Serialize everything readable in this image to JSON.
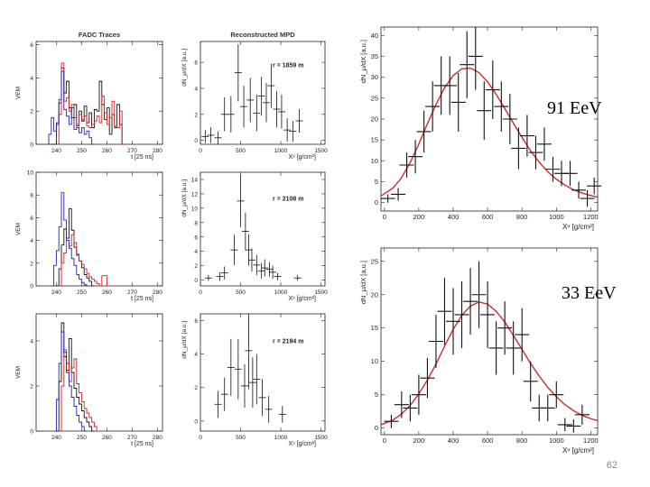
{
  "slide": {
    "energy_label_top": "91 EeV",
    "energy_label_bottom": "33 EeV",
    "page_number": "62"
  },
  "colors": {
    "black": "#111111",
    "red": "#cc2222",
    "blue": "#2222aa",
    "fit": "#d42a2a"
  },
  "chart_data": [
    {
      "id": "fadc-1",
      "type": "line",
      "title": "FADC Traces",
      "xlabel": "t [25 ns]",
      "ylabel": "VEM",
      "xlim": [
        232,
        282
      ],
      "ylim": [
        0,
        6.2
      ],
      "xticks": [
        240,
        250,
        260,
        270,
        280
      ],
      "yticks": [
        0,
        2,
        4,
        6
      ],
      "series": [
        {
          "name": "black",
          "x": [
            238,
            240,
            241,
            242,
            243,
            244,
            245,
            246,
            247,
            248,
            249,
            250,
            251,
            252,
            253,
            254,
            255,
            256,
            257,
            258,
            259,
            260,
            261,
            262,
            263,
            264,
            265,
            266
          ],
          "y": [
            0,
            1.2,
            2.5,
            4.6,
            3.1,
            3.8,
            2.2,
            1.6,
            2.4,
            1.1,
            2.0,
            1.4,
            2.3,
            1.3,
            1.9,
            1.0,
            2.1,
            2.0,
            3.8,
            2.4,
            1.5,
            2.2,
            0.6,
            1.8,
            1.0,
            2.4,
            1.2,
            0
          ]
        },
        {
          "name": "red",
          "x": [
            240,
            241,
            242,
            243,
            244,
            245,
            246,
            247,
            248,
            249,
            250,
            251,
            252,
            253,
            254,
            255,
            256,
            257,
            258,
            259,
            260,
            261,
            262,
            263,
            264,
            265,
            266
          ],
          "y": [
            0,
            1.8,
            4.9,
            2.6,
            2.8,
            2.0,
            2.4,
            1.6,
            1.2,
            1.8,
            1.5,
            1.7,
            1.1,
            1.0,
            1.2,
            1.4,
            1.7,
            1.3,
            2.9,
            1.9,
            1.2,
            1.6,
            2.6,
            1.1,
            1.0,
            2.0,
            0
          ]
        },
        {
          "name": "blue",
          "x": [
            236,
            237,
            238,
            239,
            240,
            241,
            242,
            243,
            244,
            245,
            246,
            247,
            248,
            249,
            250,
            251,
            252,
            253,
            254
          ],
          "y": [
            0,
            0.6,
            1.6,
            0.8,
            1.3,
            2.7,
            4.4,
            2.1,
            1.7,
            1.2,
            2.2,
            0.9,
            1.0,
            0.7,
            1.0,
            0.6,
            0.8,
            0.4,
            0
          ]
        }
      ]
    },
    {
      "id": "fadc-2",
      "type": "line",
      "title": "",
      "xlabel": "t [25 ns]",
      "ylabel": "VEM",
      "xlim": [
        232,
        282
      ],
      "ylim": [
        0,
        10
      ],
      "xticks": [
        240,
        250,
        260,
        270,
        280
      ],
      "yticks": [
        0,
        2,
        4,
        6,
        8,
        10
      ],
      "series": [
        {
          "name": "black",
          "x": [
            240,
            241,
            242,
            243,
            244,
            245,
            246,
            247,
            248,
            249,
            250,
            251,
            252,
            253,
            254
          ],
          "y": [
            0,
            1.5,
            3.6,
            5.0,
            4.2,
            6.8,
            4.9,
            3.4,
            2.7,
            2.2,
            1.6,
            1.0,
            0.7,
            0.4,
            0
          ]
        },
        {
          "name": "red",
          "x": [
            241,
            242,
            243,
            244,
            245,
            246,
            247,
            248,
            249,
            250,
            251,
            252,
            253,
            254,
            255,
            256,
            257,
            258,
            259,
            260,
            261
          ],
          "y": [
            0,
            2.0,
            2.9,
            4.0,
            3.5,
            4.5,
            3.8,
            2.8,
            2.2,
            1.9,
            1.5,
            1.1,
            0.8,
            0.6,
            0.4,
            0.2,
            0,
            0.9,
            0.9,
            0,
            0
          ]
        },
        {
          "name": "blue",
          "x": [
            238,
            239,
            240,
            241,
            242,
            243,
            244,
            245,
            246,
            247,
            248,
            249,
            250,
            251,
            252
          ],
          "y": [
            0,
            1.8,
            3.1,
            5.2,
            8.2,
            5.8,
            4.0,
            3.3,
            2.4,
            1.8,
            1.0,
            0.6,
            0.3,
            0.1,
            0
          ]
        }
      ]
    },
    {
      "id": "fadc-3",
      "type": "line",
      "title": "",
      "xlabel": "t [25 ns]",
      "ylabel": "VEM",
      "xlim": [
        232,
        282
      ],
      "ylim": [
        0,
        5.2
      ],
      "xticks": [
        240,
        250,
        260,
        270,
        280
      ],
      "yticks": [
        0,
        2,
        4
      ],
      "series": [
        {
          "name": "black",
          "x": [
            240,
            241,
            242,
            243,
            244,
            245,
            246,
            247,
            248,
            249,
            250,
            251,
            252,
            253,
            254
          ],
          "y": [
            0,
            2.2,
            4.8,
            3.3,
            2.7,
            4.1,
            2.6,
            1.9,
            1.5,
            1.2,
            0.9,
            0.6,
            0.4,
            0.2,
            0
          ]
        },
        {
          "name": "red",
          "x": [
            241,
            242,
            243,
            244,
            245,
            246,
            247,
            248,
            249,
            250,
            251,
            252,
            253,
            254,
            255,
            256
          ],
          "y": [
            0,
            2.0,
            3.6,
            3.0,
            2.2,
            2.8,
            3.2,
            2.1,
            1.7,
            1.3,
            1.0,
            0.8,
            0.6,
            0.4,
            0.2,
            0
          ]
        },
        {
          "name": "blue",
          "x": [
            239,
            240,
            241,
            242,
            243,
            244,
            245,
            246,
            247,
            248,
            249,
            250,
            251
          ],
          "y": [
            0,
            1.4,
            3.0,
            4.4,
            3.5,
            2.6,
            2.0,
            1.5,
            1.1,
            0.7,
            0.4,
            0.2,
            0
          ]
        }
      ]
    },
    {
      "id": "mpd-1",
      "type": "scatter",
      "title": "Reconstructed MPD",
      "xlabel": "X^μ [g/cm²]",
      "ylabel": "dN_μ/dX [a.u.]",
      "annotation": "r = 1859 m",
      "xlim": [
        0,
        1550
      ],
      "ylim": [
        -0.3,
        7.6
      ],
      "xticks": [
        0,
        500,
        1000,
        1500
      ],
      "yticks": [
        0,
        2,
        4,
        6
      ],
      "x": [
        60,
        130,
        220,
        300,
        380,
        470,
        540,
        620,
        700,
        760,
        820,
        880,
        950,
        1010,
        1080,
        1150,
        1230
      ],
      "y": [
        0.3,
        0.4,
        0.2,
        2.0,
        2.0,
        5.2,
        2.6,
        3.1,
        2.1,
        3.4,
        2.9,
        4.2,
        2.4,
        2.2,
        0.8,
        0.7,
        1.5
      ],
      "err": [
        0.5,
        0.6,
        0.5,
        1.3,
        1.4,
        2.2,
        1.6,
        1.7,
        1.4,
        1.5,
        1.5,
        1.7,
        1.4,
        1.3,
        0.9,
        0.8,
        0.9
      ]
    },
    {
      "id": "mpd-2",
      "type": "scatter",
      "title": "",
      "xlabel": "X^μ [g/cm²]",
      "ylabel": "dN_μ/dX [a.u.]",
      "annotation": "r = 2108 m",
      "xlim": [
        0,
        1550
      ],
      "ylim": [
        -0.8,
        15
      ],
      "xticks": [
        0,
        500,
        1000,
        1500
      ],
      "yticks": [
        0,
        2,
        4,
        6,
        8,
        10,
        12,
        14
      ],
      "x": [
        100,
        240,
        300,
        420,
        500,
        560,
        600,
        640,
        700,
        760,
        800,
        860,
        900,
        960,
        1210
      ],
      "y": [
        0.3,
        0.5,
        1.0,
        4.2,
        11.0,
        6.8,
        4.2,
        2.8,
        2.1,
        1.3,
        1.7,
        1.5,
        1.1,
        0.5,
        0.3
      ],
      "err": [
        0.4,
        0.6,
        0.9,
        2.1,
        3.6,
        2.6,
        2.2,
        1.6,
        1.4,
        1.1,
        1.2,
        1.0,
        0.9,
        0.5,
        0.4
      ]
    },
    {
      "id": "mpd-3",
      "type": "scatter",
      "title": "",
      "xlabel": "X^μ [g/cm²]",
      "ylabel": "dN_μ/dX [a.u.]",
      "annotation": "r = 2194 m",
      "xlim": [
        0,
        1550
      ],
      "ylim": [
        -0.6,
        6.4
      ],
      "xticks": [
        0,
        500,
        1000,
        1500
      ],
      "yticks": [
        0,
        2,
        4,
        6
      ],
      "x": [
        220,
        300,
        380,
        470,
        550,
        600,
        650,
        700,
        770,
        850,
        1020
      ],
      "y": [
        1.0,
        1.6,
        3.2,
        3.1,
        2.1,
        4.2,
        2.3,
        2.5,
        1.4,
        0.7,
        0.4
      ],
      "err": [
        0.8,
        1.0,
        1.7,
        1.8,
        1.3,
        2.3,
        1.5,
        1.5,
        1.1,
        0.8,
        0.5
      ]
    },
    {
      "id": "mpd-91eev",
      "type": "scatter",
      "title": "",
      "xlabel": "X^μ [g/cm²]",
      "ylabel": "dN_μ/dX [a.u.]",
      "xlim": [
        -20,
        1240
      ],
      "ylim": [
        -2,
        42
      ],
      "xticks": [
        0,
        200,
        400,
        600,
        800,
        1000,
        1200
      ],
      "yticks": [
        0,
        5,
        10,
        15,
        20,
        25,
        30,
        35,
        40
      ],
      "x": [
        20,
        80,
        130,
        180,
        230,
        280,
        330,
        380,
        430,
        480,
        530,
        580,
        630,
        680,
        730,
        780,
        830,
        880,
        930,
        980,
        1030,
        1080,
        1130,
        1180,
        1220
      ],
      "y": [
        1,
        2,
        9,
        11,
        17,
        23,
        28,
        28,
        24,
        33,
        35,
        22,
        27,
        23,
        20,
        13,
        16,
        12,
        14,
        8,
        7,
        7,
        3,
        1,
        4
      ],
      "err": [
        1,
        1.5,
        3,
        4,
        5,
        6,
        7,
        7,
        7,
        8,
        8,
        7,
        7,
        6,
        6,
        5,
        5,
        4,
        4,
        3,
        3,
        3,
        2,
        2,
        2
      ],
      "fit": {
        "x": [
          -20,
          50,
          100,
          150,
          200,
          250,
          300,
          350,
          400,
          450,
          500,
          550,
          600,
          650,
          700,
          750,
          800,
          850,
          900,
          950,
          1000,
          1050,
          1100,
          1150,
          1200,
          1240
        ],
        "y": [
          1.6,
          3.5,
          6.0,
          9.6,
          14.0,
          18.9,
          23.5,
          27.5,
          30.4,
          32.0,
          32.2,
          31.1,
          28.9,
          25.9,
          22.5,
          19.0,
          15.6,
          12.4,
          9.7,
          7.4,
          5.6,
          4.2,
          3.1,
          2.3,
          1.7,
          1.3
        ]
      }
    },
    {
      "id": "mpd-33eev",
      "type": "scatter",
      "title": "",
      "xlabel": "X^μ [g/cm²]",
      "ylabel": "dN_μ/dX [a.u.]",
      "xlim": [
        -20,
        1240
      ],
      "ylim": [
        -1,
        27
      ],
      "xticks": [
        0,
        200,
        400,
        600,
        800,
        1000,
        1200
      ],
      "yticks": [
        0,
        5,
        10,
        15,
        20,
        25
      ],
      "x": [
        40,
        100,
        150,
        200,
        250,
        300,
        350,
        400,
        450,
        500,
        550,
        600,
        650,
        700,
        750,
        800,
        850,
        900,
        950,
        1000,
        1050,
        1100,
        1150
      ],
      "y": [
        1,
        3.5,
        3,
        5,
        7.5,
        13,
        17.5,
        16,
        17,
        19,
        20,
        17,
        12,
        15,
        12,
        14,
        7,
        3,
        3,
        5,
        0.5,
        0.3,
        2
      ],
      "err": [
        1,
        2,
        2,
        3,
        3,
        4,
        5,
        5,
        5,
        5,
        5,
        5,
        4,
        4,
        4,
        4,
        3,
        2,
        2,
        2,
        1,
        1,
        1.5
      ],
      "fit": {
        "x": [
          -20,
          50,
          100,
          150,
          200,
          250,
          300,
          350,
          400,
          450,
          500,
          550,
          600,
          650,
          700,
          750,
          800,
          850,
          900,
          950,
          1000,
          1050,
          1100,
          1150,
          1200,
          1240
        ],
        "y": [
          0.5,
          1.2,
          2.1,
          3.4,
          5.1,
          7.2,
          9.6,
          12.3,
          14.8,
          16.9,
          18.3,
          18.9,
          18.6,
          17.5,
          15.9,
          13.9,
          11.8,
          9.7,
          7.8,
          6.1,
          4.7,
          3.5,
          2.6,
          1.9,
          1.4,
          1.1
        ]
      }
    }
  ]
}
